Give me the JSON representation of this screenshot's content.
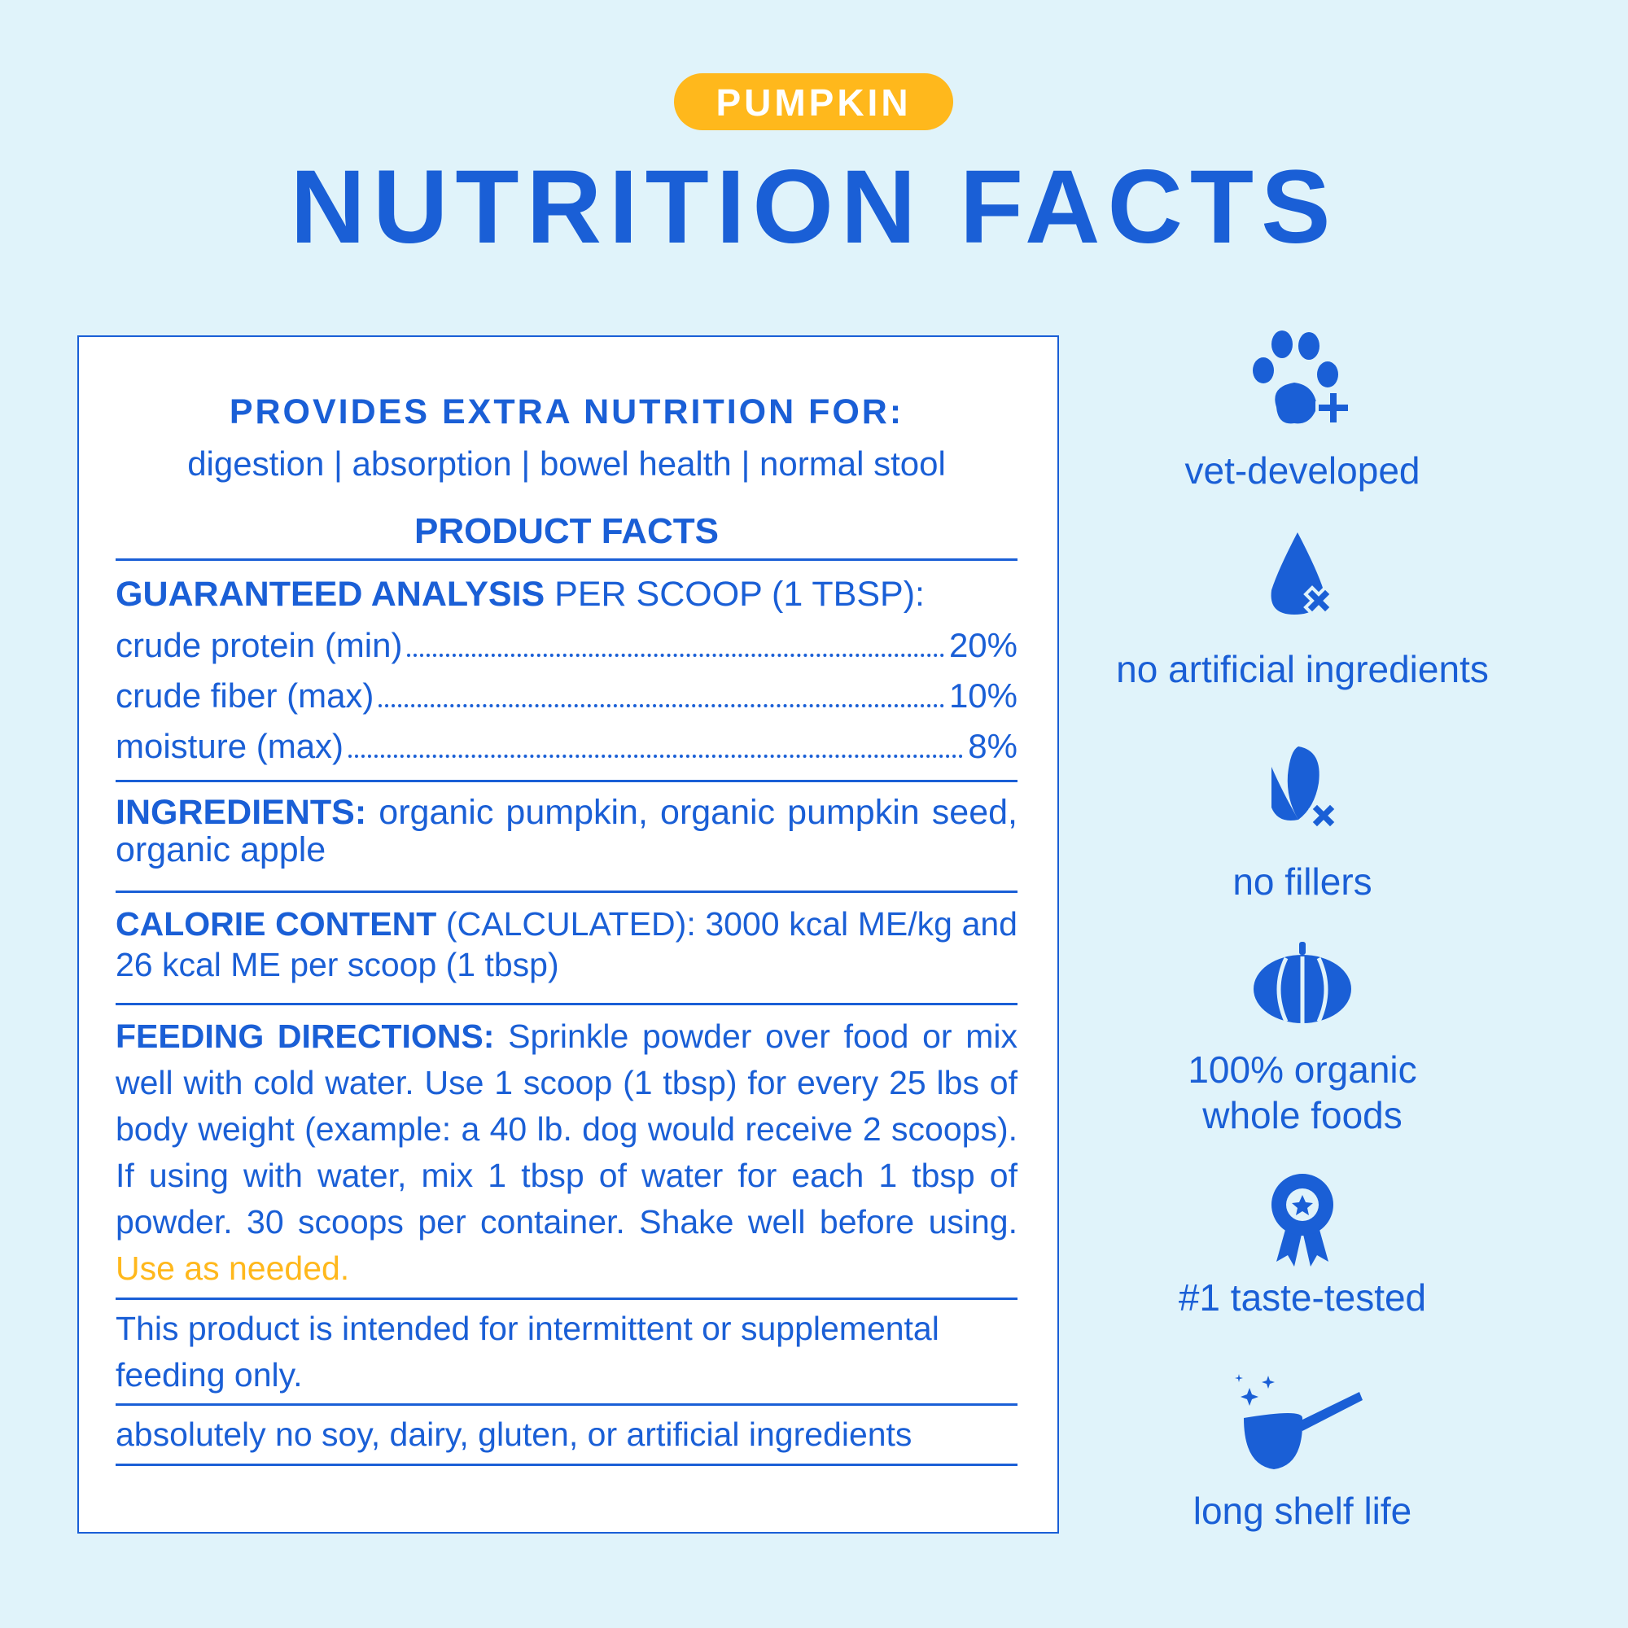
{
  "header": {
    "badge": "PUMPKIN",
    "title": "NUTRITION FACTS"
  },
  "panel": {
    "provides_title": "PROVIDES EXTRA NUTRITION FOR:",
    "provides_list": "digestion | absorption | bowel health | normal stool",
    "product_facts": "PRODUCT FACTS",
    "analysis": {
      "label": "GUARANTEED ANALYSIS",
      "suffix": " PER SCOOP (1 TBSP):",
      "rows": [
        {
          "name": "crude protein (min)",
          "value": "20%"
        },
        {
          "name": "crude fiber (max)",
          "value": "10%"
        },
        {
          "name": "moisture (max)",
          "value": "8%"
        }
      ]
    },
    "ingredients": {
      "label": "INGREDIENTS:",
      "text": " organic pumpkin, organic pumpkin seed, organic apple"
    },
    "calorie": {
      "label": "CALORIE CONTENT",
      "text": " (CALCULATED): 3000 kcal ME/kg and 26 kcal ME per scoop (1 tbsp)"
    },
    "feeding": {
      "label": "FEEDING DIRECTIONS:",
      "text": " Sprinkle powder over food or mix well with cold water. Use 1 scoop (1 tbsp) for every 25 lbs of body weight (example: a 40 lb. dog would receive 2 scoops). If using with water, mix 1 tbsp of water for each 1 tbsp of powder. 30 scoops per container. Shake well before using. ",
      "highlight": "Use as needed."
    },
    "intermittent": "This product is intended for intermittent or supplemental feeding only.",
    "free_from": "absolutely no soy, dairy, gluten, or artificial ingredients"
  },
  "features": [
    {
      "icon": "paw-plus-icon",
      "label": "vet-developed"
    },
    {
      "icon": "drop-x-icon",
      "label": "no artificial ingredients"
    },
    {
      "icon": "corn-x-icon",
      "label": "no fillers"
    },
    {
      "icon": "pumpkin-icon",
      "label": "100% organic whole foods"
    },
    {
      "icon": "award-ribbon-icon",
      "label": "#1 taste-tested"
    },
    {
      "icon": "scoop-icon",
      "label": "long shelf life"
    }
  ],
  "colors": {
    "background": "#E0F3FA",
    "primary": "#1A5FD6",
    "accent": "#FFB81C"
  }
}
